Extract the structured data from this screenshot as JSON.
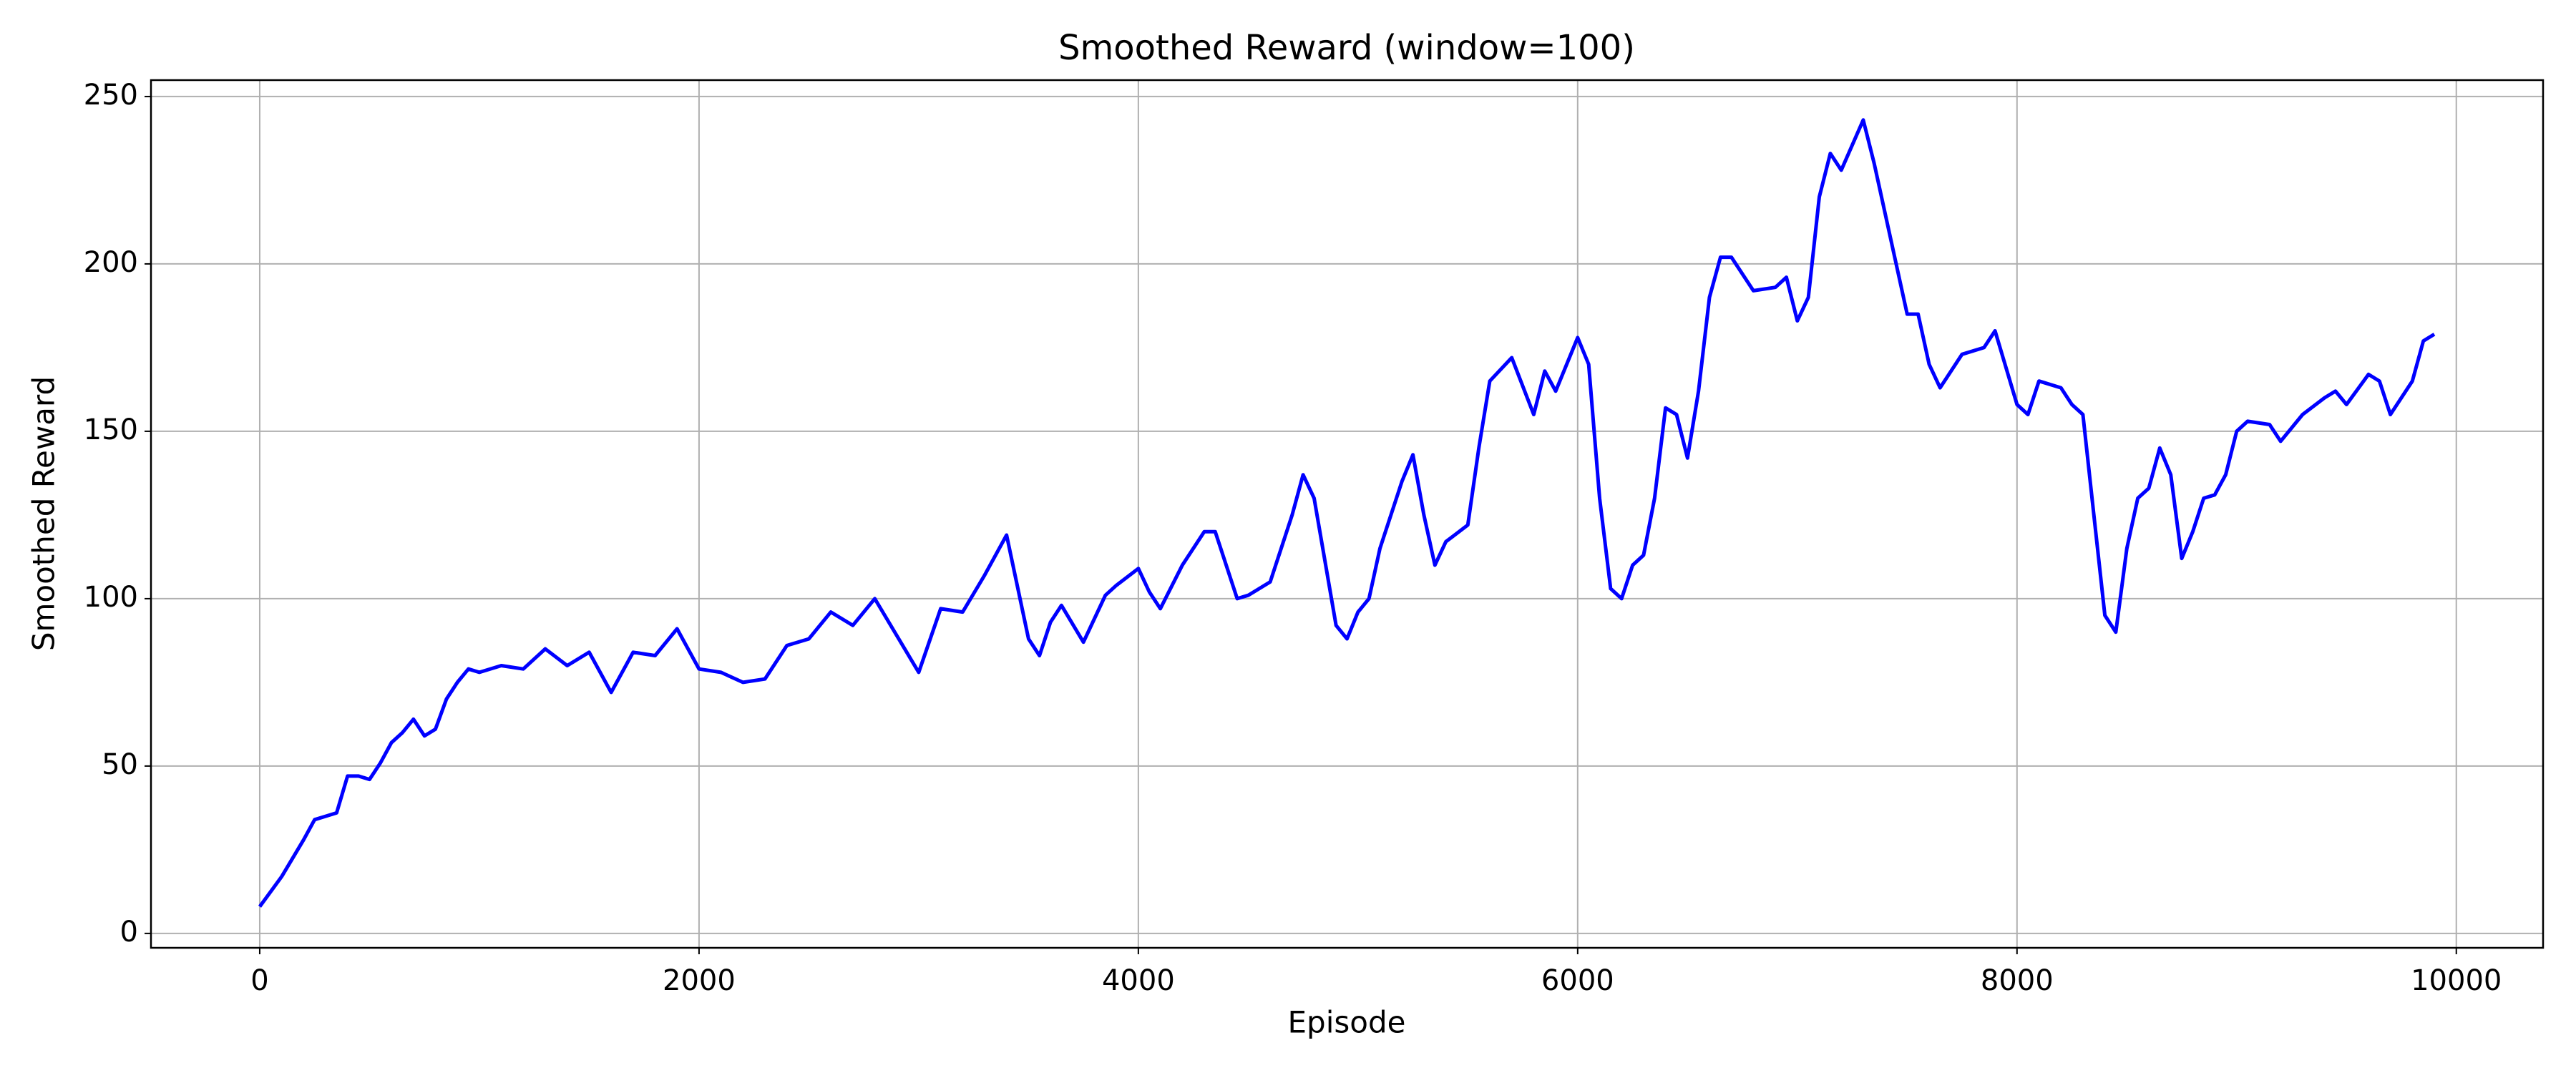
{
  "chart_data": {
    "type": "line",
    "title": "Smoothed Reward (window=100)",
    "x_label": "Episode",
    "y_label": "Smoothed Reward",
    "x": [
      0,
      100,
      200,
      250,
      300,
      350,
      400,
      450,
      500,
      550,
      600,
      650,
      700,
      750,
      800,
      850,
      900,
      950,
      1000,
      1100,
      1200,
      1300,
      1400,
      1500,
      1600,
      1700,
      1800,
      1900,
      2000,
      2100,
      2200,
      2300,
      2400,
      2500,
      2600,
      2700,
      2800,
      2900,
      3000,
      3100,
      3200,
      3300,
      3400,
      3500,
      3550,
      3600,
      3650,
      3750,
      3850,
      3900,
      4000,
      4050,
      4100,
      4200,
      4300,
      4350,
      4450,
      4500,
      4600,
      4700,
      4750,
      4800,
      4900,
      4950,
      5000,
      5050,
      5100,
      5200,
      5250,
      5300,
      5350,
      5400,
      5500,
      5550,
      5600,
      5700,
      5800,
      5850,
      5900,
      6000,
      6050,
      6100,
      6150,
      6200,
      6250,
      6300,
      6350,
      6400,
      6450,
      6500,
      6550,
      6600,
      6650,
      6700,
      6800,
      6900,
      6950,
      7000,
      7050,
      7100,
      7150,
      7200,
      7300,
      7350,
      7450,
      7500,
      7550,
      7600,
      7650,
      7750,
      7850,
      7900,
      8000,
      8050,
      8100,
      8200,
      8250,
      8300,
      8350,
      8400,
      8450,
      8500,
      8550,
      8600,
      8650,
      8700,
      8750,
      8800,
      8850,
      8900,
      8950,
      9000,
      9050,
      9150,
      9200,
      9300,
      9400,
      9450,
      9500,
      9600,
      9650,
      9700,
      9800,
      9850,
      9900
    ],
    "values": [
      8,
      17,
      28,
      34,
      35,
      36,
      47,
      47,
      46,
      51,
      57,
      60,
      64,
      59,
      61,
      70,
      75,
      79,
      78,
      80,
      79,
      85,
      80,
      84,
      72,
      84,
      83,
      91,
      79,
      78,
      75,
      76,
      86,
      88,
      96,
      92,
      100,
      89,
      78,
      97,
      96,
      107,
      119,
      88,
      83,
      93,
      98,
      87,
      101,
      104,
      109,
      102,
      97,
      110,
      120,
      120,
      100,
      101,
      105,
      125,
      137,
      130,
      92,
      88,
      96,
      100,
      115,
      135,
      143,
      125,
      110,
      117,
      122,
      145,
      165,
      172,
      155,
      168,
      162,
      178,
      170,
      130,
      103,
      100,
      110,
      113,
      130,
      157,
      155,
      142,
      162,
      190,
      202,
      202,
      192,
      193,
      196,
      183,
      190,
      220,
      233,
      228,
      243,
      230,
      200,
      185,
      185,
      170,
      163,
      173,
      175,
      180,
      158,
      155,
      165,
      163,
      158,
      155,
      125,
      95,
      90,
      115,
      130,
      133,
      145,
      137,
      112,
      120,
      130,
      131,
      137,
      150,
      153,
      152,
      147,
      155,
      160,
      162,
      158,
      167,
      165,
      155,
      165,
      177,
      179
    ],
    "color": "blue",
    "xlim": [
      -495,
      10395
    ],
    "ylim": [
      -4.3,
      254.9
    ],
    "xticks": [
      0,
      2000,
      4000,
      6000,
      8000,
      10000
    ],
    "yticks": [
      0,
      50,
      100,
      150,
      200,
      250
    ],
    "grid": true
  }
}
